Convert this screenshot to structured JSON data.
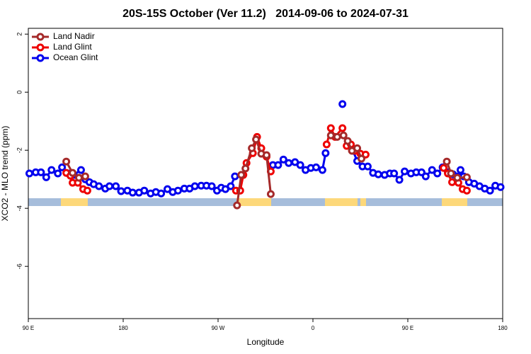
{
  "chart_data": {
    "type": "line",
    "title": "20S-15S October (Ver 11.2)   2014-09-06 to 2024-07-31",
    "xlabel": "Longitude",
    "ylabel": "XCO2 - MLO trend (ppm)",
    "xlim": [
      90,
      540
    ],
    "xticks": [
      {
        "value": 90,
        "label": "90 E"
      },
      180,
      {
        "value": 270,
        "label": "90 W"
      },
      {
        "value": 360,
        "label": "0"
      },
      {
        "value": 450,
        "label": "90 E"
      },
      {
        "value": 540,
        "label": "180"
      }
    ],
    "ylim": [
      -7.8,
      2.2
    ],
    "yticks": [
      2,
      0,
      -2,
      -4,
      -6
    ],
    "legend": "top-left",
    "series": [
      {
        "name": "Land Nadir",
        "color": "#a52a2a",
        "x": [
          126,
          132,
          138,
          144,
          null,
          288,
          292,
          296,
          302,
          306,
          311,
          316,
          320,
          null,
          377,
          383,
          389,
          393,
          397,
          402,
          406,
          null,
          487,
          491,
          497,
          506
        ],
        "values": [
          -2.39,
          -2.78,
          -2.95,
          -2.9,
          null,
          -3.9,
          -2.85,
          -2.63,
          -1.93,
          -1.63,
          -2.12,
          -2.17,
          -3.51,
          null,
          -1.49,
          -1.54,
          -1.49,
          -1.68,
          -2.02,
          -1.93,
          -2.29,
          null,
          -2.39,
          -2.8,
          -2.95,
          -2.93
        ]
      },
      {
        "name": "Land Glint",
        "color": "#ee0000",
        "x": [
          126,
          130,
          132,
          137,
          142,
          146,
          null,
          287,
          291,
          294,
          297,
          303,
          307,
          311,
          316,
          320,
          null,
          373,
          377,
          381,
          388,
          392,
          396,
          400,
          405,
          410,
          null,
          484,
          488,
          492,
          498,
          502,
          506
        ],
        "values": [
          -2.78,
          -2.88,
          -3.12,
          -3.12,
          -3.34,
          -3.39,
          null,
          -3.39,
          -3.39,
          -2.85,
          -2.44,
          -2.1,
          -1.54,
          -1.93,
          -2.22,
          -2.73,
          null,
          -1.8,
          -1.24,
          -1.54,
          -1.24,
          -1.85,
          -1.8,
          -2.02,
          -2.12,
          -2.15,
          null,
          -2.61,
          -2.8,
          -3.1,
          -3.12,
          -3.34,
          -3.39
        ]
      },
      {
        "name": "Ocean Glint",
        "color": "#0000ee",
        "x": [
          91,
          97,
          102,
          107,
          112,
          118,
          122,
          128,
          133,
          140,
          144,
          148,
          152,
          157,
          163,
          167,
          173,
          178,
          184,
          189,
          195,
          200,
          206,
          211,
          216,
          222,
          227,
          232,
          238,
          243,
          248,
          254,
          259,
          264,
          269,
          273,
          277,
          282,
          286,
          null,
          322,
          327,
          332,
          337,
          343,
          348,
          353,
          358,
          363,
          369,
          372,
          null,
          388,
          null,
          398,
          402,
          407,
          412,
          417,
          422,
          428,
          433,
          437,
          442,
          447,
          453,
          458,
          463,
          467,
          473,
          478,
          483,
          488,
          493,
          498,
          500,
          503,
          508,
          513,
          518,
          523,
          528,
          533,
          538
        ],
        "values": [
          -2.8,
          -2.76,
          -2.76,
          -2.93,
          -2.68,
          -2.8,
          -2.59,
          -2.8,
          -2.85,
          -2.68,
          -3.0,
          -3.1,
          -3.17,
          -3.24,
          -3.32,
          -3.24,
          -3.24,
          -3.41,
          -3.39,
          -3.46,
          -3.46,
          -3.39,
          -3.49,
          -3.44,
          -3.49,
          -3.34,
          -3.44,
          -3.39,
          -3.32,
          -3.32,
          -3.24,
          -3.22,
          -3.22,
          -3.24,
          -3.39,
          -3.29,
          -3.34,
          -3.24,
          -2.9,
          null,
          -2.51,
          -2.51,
          -2.32,
          -2.44,
          -2.41,
          -2.51,
          -2.68,
          -2.61,
          -2.59,
          -2.68,
          -2.1,
          null,
          -0.41,
          null,
          -2.02,
          -2.37,
          -2.56,
          -2.56,
          -2.78,
          -2.83,
          -2.85,
          -2.8,
          -2.8,
          -3.02,
          -2.73,
          -2.8,
          -2.76,
          -2.76,
          -2.9,
          -2.68,
          -2.8,
          -2.59,
          -2.76,
          -2.83,
          -2.9,
          -2.68,
          -2.9,
          -3.1,
          -3.15,
          -3.24,
          -3.32,
          -3.39,
          -3.22,
          -3.27
        ]
      }
    ]
  }
}
